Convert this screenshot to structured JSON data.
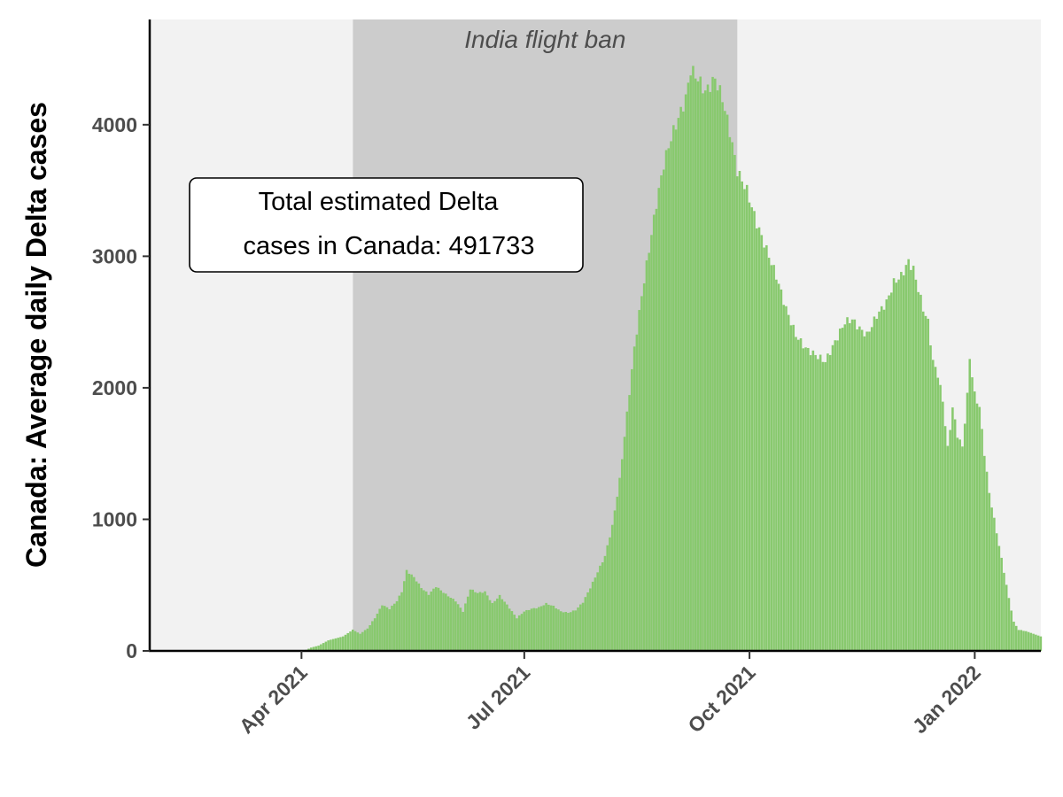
{
  "chart_data": {
    "type": "bar",
    "title": "",
    "ylabel": "Canada: Average daily Delta cases",
    "xlabel": "",
    "x_range": [
      "2021-01-29",
      "2022-01-28"
    ],
    "ylim": [
      0,
      4800
    ],
    "y_ticks": [
      0,
      1000,
      2000,
      3000,
      4000
    ],
    "x_ticks": [
      {
        "date": "2021-04-01",
        "label": "Apr 2021"
      },
      {
        "date": "2021-07-01",
        "label": "Jul 2021"
      },
      {
        "date": "2021-10-01",
        "label": "Oct 2021"
      },
      {
        "date": "2022-01-01",
        "label": "Jan 2022"
      }
    ],
    "grid": false,
    "bar_color": "#88c96e",
    "highlight": {
      "label": "India flight ban",
      "start": "2021-04-22",
      "end": "2021-09-26",
      "color": "#cccccc"
    },
    "background_color": "#f2f2f2",
    "annotation": {
      "line1": "Total estimated Delta",
      "line2": "cases in Canada: 491733"
    },
    "series_keypoints": [
      [
        "2021-04-02",
        0
      ],
      [
        "2021-04-05",
        25
      ],
      [
        "2021-04-08",
        40
      ],
      [
        "2021-04-12",
        80
      ],
      [
        "2021-04-18",
        110
      ],
      [
        "2021-04-22",
        160
      ],
      [
        "2021-04-25",
        130
      ],
      [
        "2021-04-28",
        170
      ],
      [
        "2021-05-01",
        250
      ],
      [
        "2021-05-04",
        350
      ],
      [
        "2021-05-07",
        320
      ],
      [
        "2021-05-10",
        380
      ],
      [
        "2021-05-12",
        450
      ],
      [
        "2021-05-14",
        610
      ],
      [
        "2021-05-17",
        560
      ],
      [
        "2021-05-20",
        480
      ],
      [
        "2021-05-23",
        430
      ],
      [
        "2021-05-26",
        490
      ],
      [
        "2021-05-30",
        430
      ],
      [
        "2021-06-03",
        380
      ],
      [
        "2021-06-06",
        300
      ],
      [
        "2021-06-09",
        470
      ],
      [
        "2021-06-12",
        440
      ],
      [
        "2021-06-15",
        450
      ],
      [
        "2021-06-18",
        360
      ],
      [
        "2021-06-21",
        420
      ],
      [
        "2021-06-24",
        350
      ],
      [
        "2021-06-28",
        250
      ],
      [
        "2021-07-01",
        300
      ],
      [
        "2021-07-04",
        320
      ],
      [
        "2021-07-07",
        330
      ],
      [
        "2021-07-10",
        360
      ],
      [
        "2021-07-13",
        340
      ],
      [
        "2021-07-16",
        300
      ],
      [
        "2021-07-19",
        290
      ],
      [
        "2021-07-22",
        310
      ],
      [
        "2021-07-25",
        370
      ],
      [
        "2021-07-28",
        480
      ],
      [
        "2021-07-31",
        600
      ],
      [
        "2021-08-03",
        720
      ],
      [
        "2021-08-06",
        950
      ],
      [
        "2021-08-09",
        1300
      ],
      [
        "2021-08-12",
        1800
      ],
      [
        "2021-08-15",
        2300
      ],
      [
        "2021-08-18",
        2700
      ],
      [
        "2021-08-21",
        3050
      ],
      [
        "2021-08-24",
        3400
      ],
      [
        "2021-08-27",
        3700
      ],
      [
        "2021-08-30",
        3900
      ],
      [
        "2021-09-02",
        4050
      ],
      [
        "2021-09-05",
        4200
      ],
      [
        "2021-09-07",
        4420
      ],
      [
        "2021-09-10",
        4350
      ],
      [
        "2021-09-13",
        4250
      ],
      [
        "2021-09-15",
        4300
      ],
      [
        "2021-09-17",
        4350
      ],
      [
        "2021-09-20",
        4200
      ],
      [
        "2021-09-23",
        3950
      ],
      [
        "2021-09-26",
        3650
      ],
      [
        "2021-09-30",
        3500
      ],
      [
        "2021-10-04",
        3250
      ],
      [
        "2021-10-08",
        3050
      ],
      [
        "2021-10-12",
        2850
      ],
      [
        "2021-10-16",
        2600
      ],
      [
        "2021-10-20",
        2400
      ],
      [
        "2021-10-24",
        2300
      ],
      [
        "2021-10-28",
        2250
      ],
      [
        "2021-11-01",
        2200
      ],
      [
        "2021-11-05",
        2350
      ],
      [
        "2021-11-09",
        2500
      ],
      [
        "2021-11-12",
        2520
      ],
      [
        "2021-11-15",
        2450
      ],
      [
        "2021-11-18",
        2400
      ],
      [
        "2021-11-22",
        2550
      ],
      [
        "2021-11-26",
        2650
      ],
      [
        "2021-11-29",
        2800
      ],
      [
        "2021-12-02",
        2850
      ],
      [
        "2021-12-05",
        2960
      ],
      [
        "2021-12-07",
        2900
      ],
      [
        "2021-12-09",
        2750
      ],
      [
        "2021-12-11",
        2600
      ],
      [
        "2021-12-13",
        2500
      ],
      [
        "2021-12-15",
        2200
      ],
      [
        "2021-12-17",
        2100
      ],
      [
        "2021-12-19",
        1900
      ],
      [
        "2021-12-21",
        1540
      ],
      [
        "2021-12-23",
        1850
      ],
      [
        "2021-12-25",
        1640
      ],
      [
        "2021-12-27",
        1550
      ],
      [
        "2021-12-29",
        1940
      ],
      [
        "2021-12-30",
        2230
      ],
      [
        "2022-01-01",
        1950
      ],
      [
        "2022-01-03",
        1850
      ],
      [
        "2022-01-05",
        1500
      ],
      [
        "2022-01-07",
        1200
      ],
      [
        "2022-01-09",
        1000
      ],
      [
        "2022-01-11",
        800
      ],
      [
        "2022-01-13",
        600
      ],
      [
        "2022-01-15",
        400
      ],
      [
        "2022-01-17",
        220
      ],
      [
        "2022-01-19",
        160
      ],
      [
        "2022-01-22",
        150
      ],
      [
        "2022-01-25",
        130
      ],
      [
        "2022-01-28",
        110
      ]
    ]
  }
}
